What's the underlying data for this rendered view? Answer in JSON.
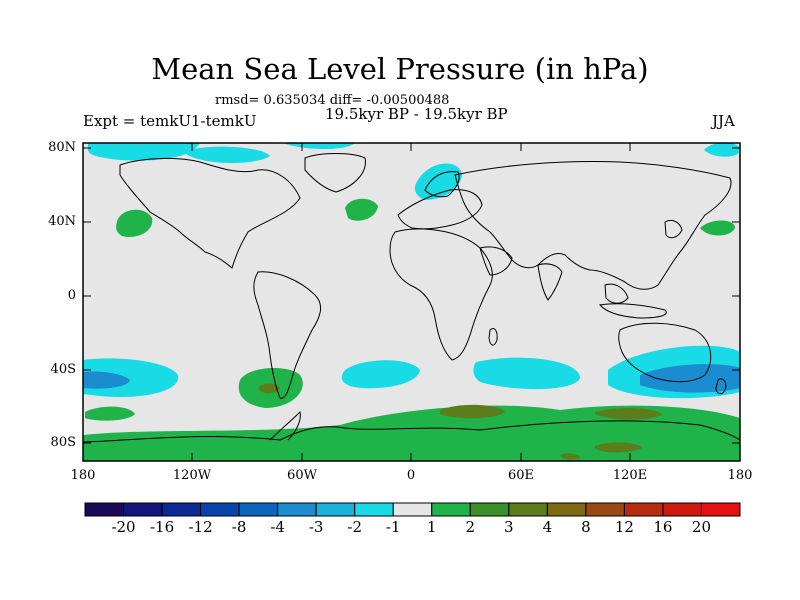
{
  "header": {
    "title": "Mean Sea Level Pressure (in hPa)",
    "stats": "rmsd= 0.635034 diff= -0.00500488",
    "experiment": "Expt = temkU1-temkU",
    "period": "19.5kyr BP - 19.5kyr BP",
    "season": "JJA"
  },
  "axes": {
    "y_ticks": [
      "80N",
      "40N",
      "0",
      "40S",
      "80S"
    ],
    "x_ticks": [
      "180",
      "120W",
      "60W",
      "0",
      "60E",
      "120E",
      "180"
    ]
  },
  "colorbar": {
    "labels": [
      "-20",
      "-16",
      "-12",
      "-8",
      "-4",
      "-3",
      "-2",
      "-1",
      "1",
      "2",
      "3",
      "4",
      "8",
      "12",
      "16",
      "20"
    ],
    "colors": [
      "#1a0a5a",
      "#14167e",
      "#0b2a96",
      "#0a43ab",
      "#0d66be",
      "#1a8ccf",
      "#19b0dd",
      "#19dbe6",
      "#e6e6e6",
      "#1fb34a",
      "#3d8f2b",
      "#5c7d1c",
      "#7f6a14",
      "#9b4a12",
      "#b82d10",
      "#d01a10",
      "#e61010"
    ]
  }
}
